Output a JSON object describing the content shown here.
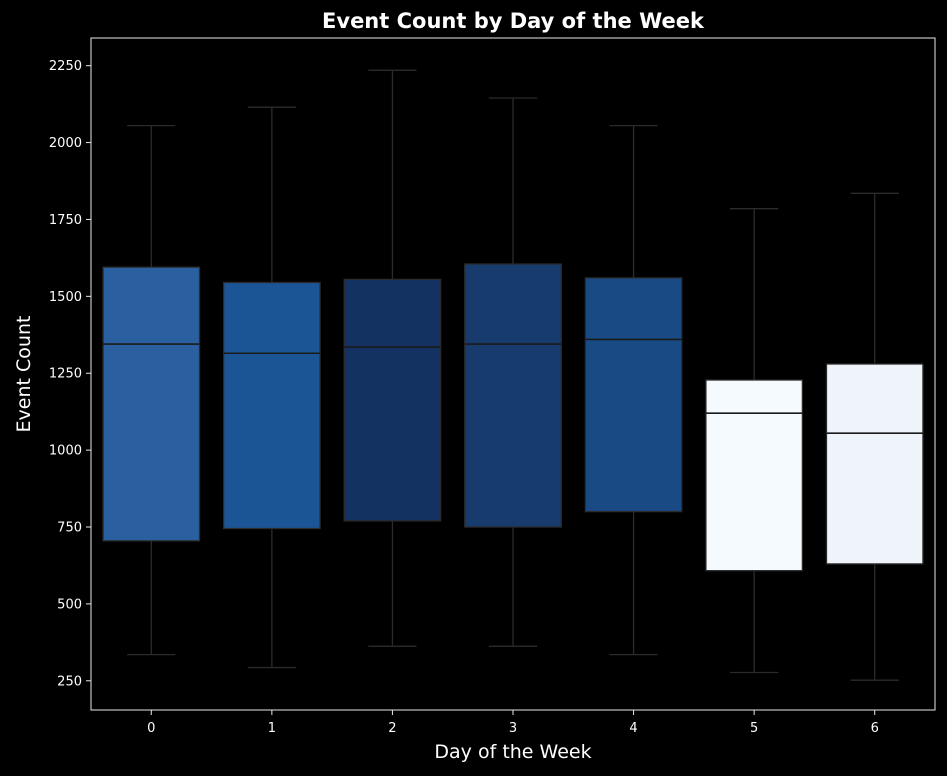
{
  "chart_data": {
    "type": "box",
    "title": "Event Count by Day of the Week",
    "xlabel": "Day of the Week",
    "ylabel": "Event Count",
    "categories": [
      "0",
      "1",
      "2",
      "3",
      "4",
      "5",
      "6"
    ],
    "ylim": [
      155,
      2340
    ],
    "yticks": [
      250,
      500,
      750,
      1000,
      1250,
      1500,
      1750,
      2000,
      2250
    ],
    "grid": false,
    "background": "#000000",
    "boxes": [
      {
        "category": "0",
        "whisker_low": 335,
        "q1": 705,
        "median": 1345,
        "q3": 1595,
        "whisker_high": 2055,
        "color": "#2a60a0"
      },
      {
        "category": "1",
        "whisker_low": 293,
        "q1": 745,
        "median": 1315,
        "q3": 1545,
        "whisker_high": 2115,
        "color": "#1c5595"
      },
      {
        "category": "2",
        "whisker_low": 362,
        "q1": 770,
        "median": 1335,
        "q3": 1555,
        "whisker_high": 2235,
        "color": "#133262"
      },
      {
        "category": "3",
        "whisker_low": 362,
        "q1": 750,
        "median": 1345,
        "q3": 1605,
        "whisker_high": 2145,
        "color": "#173b6c"
      },
      {
        "category": "4",
        "whisker_low": 335,
        "q1": 800,
        "median": 1360,
        "q3": 1560,
        "whisker_high": 2055,
        "color": "#1a4a84"
      },
      {
        "category": "5",
        "whisker_low": 277,
        "q1": 608,
        "median": 1120,
        "q3": 1228,
        "whisker_high": 1785,
        "color": "#f5fafe"
      },
      {
        "category": "6",
        "whisker_low": 252,
        "q1": 630,
        "median": 1055,
        "q3": 1280,
        "whisker_high": 1835,
        "color": "#eff3fa"
      }
    ]
  }
}
